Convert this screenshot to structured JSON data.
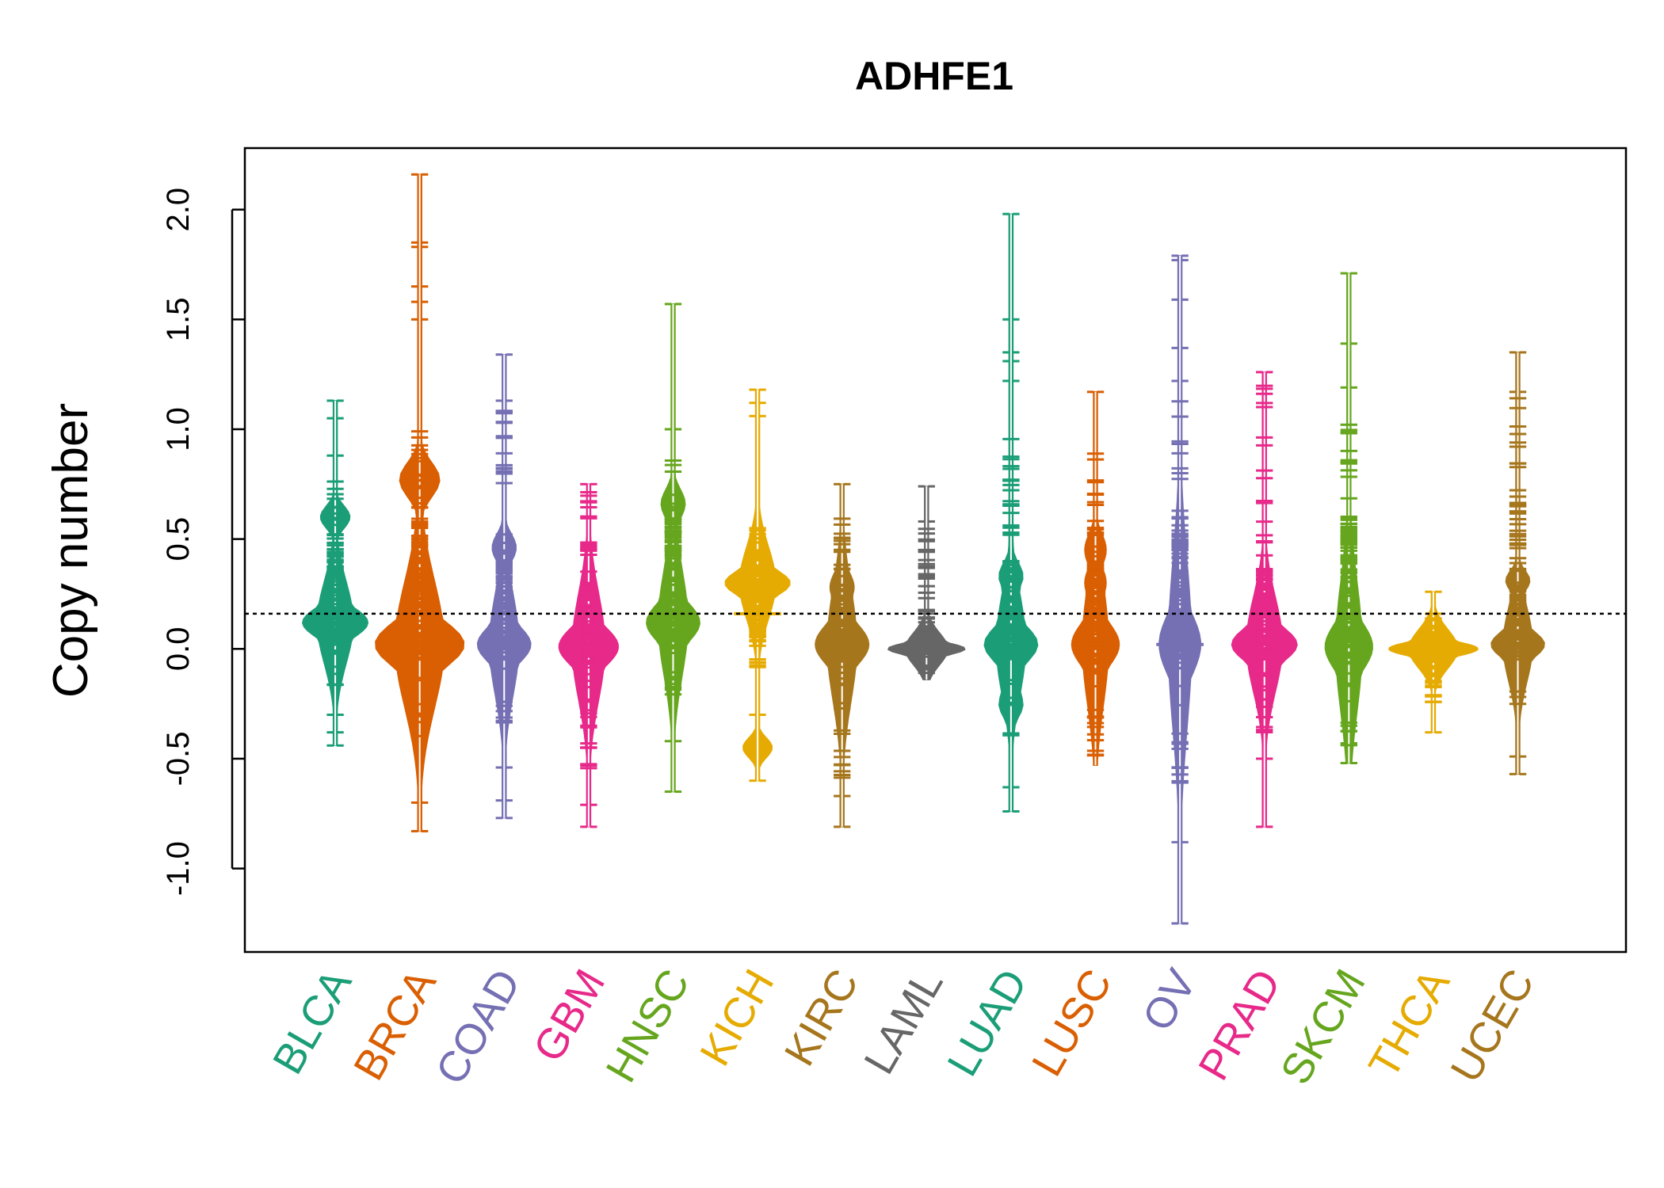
{
  "chart_data": {
    "type": "beanplot",
    "title": "ADHFE1",
    "xlabel": "",
    "ylabel": "Copy number",
    "ylim": [
      -1.38,
      2.28
    ],
    "yticks": [
      "-1.0",
      "-0.5",
      "0.0",
      "0.5",
      "1.0",
      "1.5",
      "2.0"
    ],
    "ytick_values": [
      -1.0,
      -0.5,
      0.0,
      0.5,
      1.0,
      1.5,
      2.0
    ],
    "reference_line": 0.16,
    "grid": false,
    "series": [
      {
        "name": "BLCA",
        "color": "#1B9E77",
        "mean": 0.12,
        "q": [
          -0.2,
          0.0,
          0.12,
          0.45,
          0.8
        ],
        "range": [
          -0.44,
          1.13
        ],
        "max_w": 0.55,
        "shape_bumps": [
          0.12,
          0.6
        ],
        "extremes": [
          1.13,
          1.05,
          0.88,
          -0.3,
          -0.38,
          -0.44
        ]
      },
      {
        "name": "BRCA",
        "color": "#D95F02",
        "mean": 0.02,
        "q": [
          -0.4,
          0.0,
          0.02,
          0.6,
          1.15
        ],
        "range": [
          -0.83,
          2.16
        ],
        "max_w": 0.75,
        "shape_bumps": [
          0.02,
          0.77
        ],
        "extremes": [
          2.16,
          1.85,
          1.83,
          1.65,
          1.58,
          1.5,
          -0.7,
          -0.83
        ]
      },
      {
        "name": "COAD",
        "color": "#7570B3",
        "mean": 0.02,
        "q": [
          -0.35,
          0.0,
          0.02,
          0.45,
          1.1
        ],
        "range": [
          -0.77,
          1.34
        ],
        "max_w": 0.45,
        "shape_bumps": [
          0.02,
          0.46
        ],
        "extremes": [
          1.34,
          1.13,
          -0.54,
          -0.69,
          -0.77
        ]
      },
      {
        "name": "GBM",
        "color": "#E7298A",
        "mean": 0.01,
        "q": [
          -0.55,
          -0.05,
          0.01,
          0.3,
          0.75
        ],
        "range": [
          -0.81,
          0.75
        ],
        "max_w": 0.5,
        "shape_bumps": [
          0.01
        ],
        "extremes": [
          0.75,
          -0.71,
          -0.81
        ]
      },
      {
        "name": "HNSC",
        "color": "#66A61E",
        "mean": 0.12,
        "q": [
          -0.25,
          0.0,
          0.12,
          0.6,
          0.9
        ],
        "range": [
          -0.65,
          1.57
        ],
        "max_w": 0.45,
        "shape_bumps": [
          0.12,
          0.66
        ],
        "extremes": [
          1.57,
          1.0,
          -0.42,
          -0.65
        ]
      },
      {
        "name": "KICH",
        "color": "#E6AB02",
        "mean": 0.16,
        "q": [
          -0.12,
          0.05,
          0.3,
          0.45,
          0.55
        ],
        "range": [
          -0.6,
          1.18
        ],
        "max_w": 0.55,
        "shape_bumps": [
          0.3,
          -0.45
        ],
        "extremes": [
          1.18,
          1.12,
          1.06,
          -0.3,
          -0.6
        ]
      },
      {
        "name": "KIRC",
        "color": "#A6761D",
        "mean": 0.02,
        "q": [
          -0.6,
          -0.05,
          0.02,
          0.3,
          0.6
        ],
        "range": [
          -0.81,
          0.75
        ],
        "max_w": 0.45,
        "shape_bumps": [
          0.02,
          0.28
        ],
        "extremes": [
          0.75,
          -0.67,
          -0.81
        ]
      },
      {
        "name": "LAML",
        "color": "#666666",
        "mean": 0.0,
        "q": [
          -0.13,
          -0.02,
          0.0,
          0.1,
          0.55
        ],
        "range": [
          -0.14,
          0.74
        ],
        "max_w": 0.65,
        "shape_bumps": [
          0.0
        ],
        "extremes": [
          0.74,
          0.58
        ]
      },
      {
        "name": "LUAD",
        "color": "#1B9E77",
        "mean": 0.02,
        "q": [
          -0.4,
          -0.05,
          0.02,
          0.4,
          1.0
        ],
        "range": [
          -0.74,
          1.98
        ],
        "max_w": 0.45,
        "shape_bumps": [
          0.02,
          0.33,
          -0.25
        ],
        "extremes": [
          1.98,
          1.5,
          1.35,
          1.31,
          1.22,
          -0.63,
          -0.74
        ]
      },
      {
        "name": "LUSC",
        "color": "#D95F02",
        "mean": 0.02,
        "q": [
          -0.5,
          -0.05,
          0.02,
          0.45,
          0.95
        ],
        "range": [
          -0.53,
          1.17
        ],
        "max_w": 0.4,
        "shape_bumps": [
          0.02,
          0.3,
          0.45
        ],
        "extremes": [
          1.17
        ]
      },
      {
        "name": "OV",
        "color": "#7570B3",
        "mean": 0.02,
        "q": [
          -0.75,
          -0.05,
          0.02,
          0.6,
          1.15
        ],
        "range": [
          -1.25,
          1.79
        ],
        "max_w": 0.35,
        "shape_bumps": [
          0.02,
          0.1
        ],
        "extremes": [
          1.79,
          1.77,
          1.59,
          1.37,
          1.22,
          -0.88,
          -1.25
        ]
      },
      {
        "name": "PRAD",
        "color": "#E7298A",
        "mean": 0.02,
        "q": [
          -0.4,
          -0.02,
          0.02,
          0.35,
          1.2
        ],
        "range": [
          -0.81,
          1.26
        ],
        "max_w": 0.55,
        "shape_bumps": [
          0.02
        ],
        "extremes": [
          1.26,
          -0.5,
          -0.81
        ]
      },
      {
        "name": "SKCM",
        "color": "#66A61E",
        "mean": 0.01,
        "q": [
          -0.45,
          -0.02,
          0.01,
          0.6,
          1.05
        ],
        "range": [
          -0.52,
          1.71
        ],
        "max_w": 0.4,
        "shape_bumps": [
          0.01,
          0.2
        ],
        "extremes": [
          1.71,
          1.39,
          1.19,
          -0.43,
          -0.52
        ]
      },
      {
        "name": "THCA",
        "color": "#E6AB02",
        "mean": 0.0,
        "q": [
          -0.25,
          -0.05,
          0.0,
          0.05,
          0.17
        ],
        "range": [
          -0.38,
          0.26
        ],
        "max_w": 0.75,
        "shape_bumps": [
          0.0
        ],
        "extremes": [
          0.26,
          -0.38
        ]
      },
      {
        "name": "UCEC",
        "color": "#A6761D",
        "mean": 0.02,
        "q": [
          -0.3,
          -0.02,
          0.02,
          0.3,
          1.15
        ],
        "range": [
          -0.57,
          1.35
        ],
        "max_w": 0.45,
        "shape_bumps": [
          0.02,
          0.31
        ],
        "extremes": [
          1.35,
          1.17,
          -0.49,
          -0.57
        ]
      }
    ]
  }
}
